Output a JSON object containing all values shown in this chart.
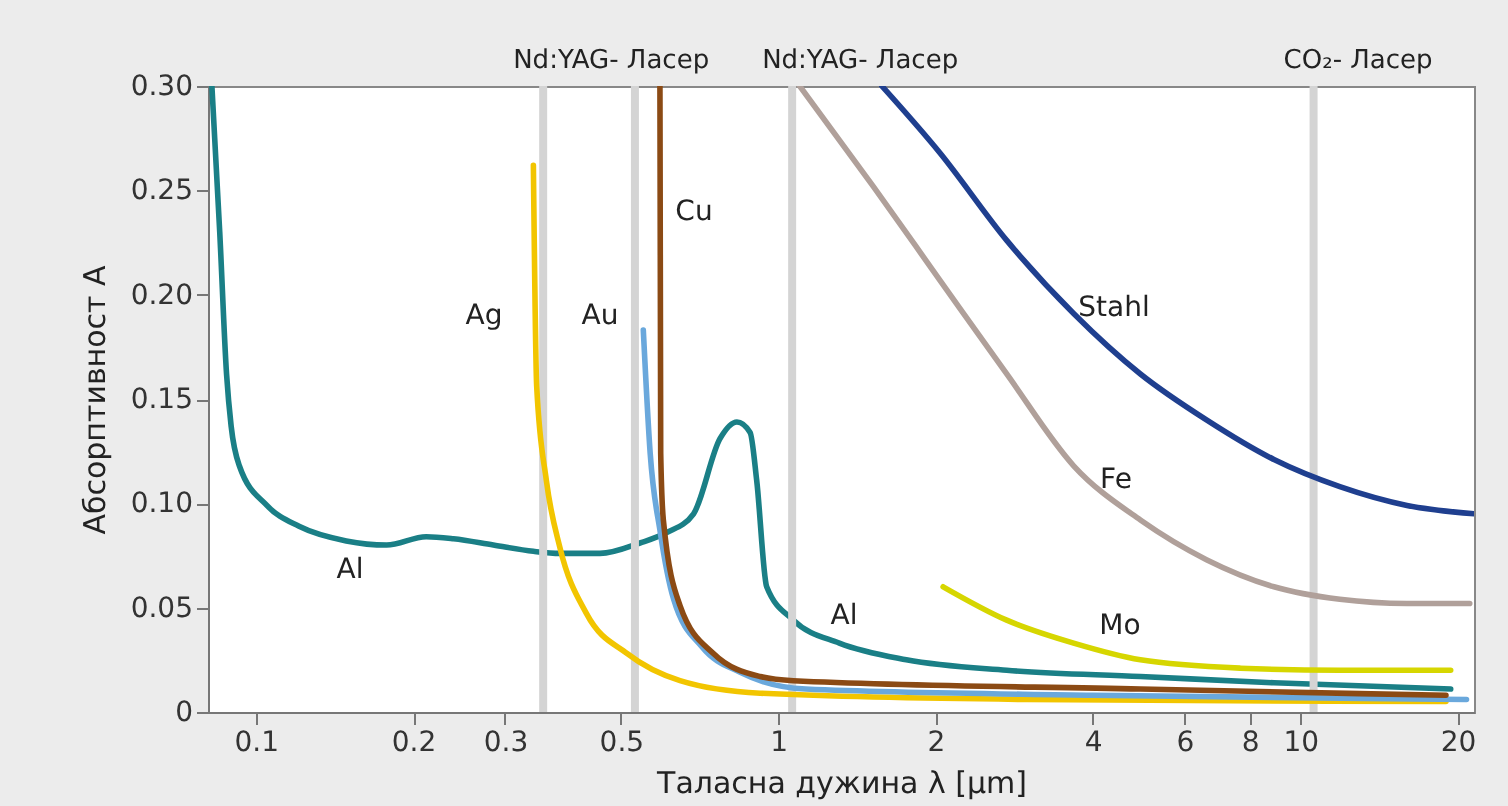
{
  "chart_data": {
    "type": "line",
    "xlabel": "Таласна дужина λ [µm]",
    "ylabel": "Абсорптивност A",
    "log": "x",
    "xlim": [
      0.081,
      21.5
    ],
    "xticks": [
      0.1,
      0.2,
      0.3,
      0.5,
      1,
      2,
      4,
      6,
      8,
      10,
      20
    ],
    "ylim": [
      0,
      0.3
    ],
    "yticks": [
      {
        "value": 0,
        "label": "0"
      },
      {
        "value": 0.05,
        "label": "0.05"
      },
      {
        "value": 0.1,
        "label": "0.10"
      },
      {
        "value": 0.15,
        "label": "0.15"
      },
      {
        "value": 0.2,
        "label": "0.20"
      },
      {
        "value": 0.25,
        "label": "0.25"
      },
      {
        "value": 0.3,
        "label": "0.30"
      }
    ],
    "line_style": "solid",
    "series": [
      {
        "name": "Al",
        "color": "#1a7f86",
        "x": [
          0.0824,
          0.0853,
          0.0879,
          0.0897,
          0.093,
          0.105,
          0.121,
          0.149,
          0.178,
          0.212,
          0.239,
          0.285,
          0.34,
          0.382,
          0.456,
          0.544,
          0.612,
          0.689,
          0.774,
          0.834,
          0.884,
          0.91,
          0.951,
          1.07,
          1.31,
          1.76,
          2.74,
          4.94,
          8.9,
          19.4
        ],
        "values": [
          0.3,
          0.23,
          0.162,
          0.137,
          0.118,
          0.099,
          0.089,
          0.082,
          0.08,
          0.084,
          0.083,
          0.08,
          0.077,
          0.076,
          0.076,
          0.081,
          0.086,
          0.095,
          0.131,
          0.139,
          0.134,
          0.111,
          0.06,
          0.044,
          0.033,
          0.025,
          0.02,
          0.017,
          0.014,
          0.011
        ]
      },
      {
        "name": "Ag",
        "color": "#f2c500",
        "x": [
          0.34,
          0.345,
          0.36,
          0.382,
          0.43,
          0.514,
          0.649,
          0.924,
          3.0,
          19.0
        ],
        "values": [
          0.262,
          0.156,
          0.111,
          0.079,
          0.047,
          0.028,
          0.015,
          0.009,
          0.006,
          0.005
        ]
      },
      {
        "name": "Au",
        "color": "#6aa8dc",
        "x": [
          0.552,
          0.569,
          0.595,
          0.631,
          0.716,
          0.846,
          1.13,
          4.0,
          20.8
        ],
        "values": [
          0.183,
          0.124,
          0.086,
          0.054,
          0.031,
          0.019,
          0.011,
          0.008,
          0.006
        ]
      },
      {
        "name": "Cu",
        "color": "#8b4a14",
        "x": [
          0.594,
          0.596,
          0.603,
          0.649,
          0.752,
          0.924,
          1.07,
          4.94,
          19.0
        ],
        "values": [
          0.3,
          0.124,
          0.092,
          0.051,
          0.028,
          0.017,
          0.015,
          0.011,
          0.008
        ]
      },
      {
        "name": "Stahl",
        "color": "#1f3f8f",
        "x": [
          1.58,
          2.04,
          2.74,
          3.68,
          4.94,
          6.61,
          8.9,
          11.9,
          16.0,
          21.5
        ],
        "values": [
          0.3,
          0.268,
          0.226,
          0.191,
          0.162,
          0.14,
          0.121,
          0.108,
          0.099,
          0.095
        ]
      },
      {
        "name": "Fe",
        "color": "#b0a09a",
        "x": [
          1.1,
          1.52,
          2.04,
          2.74,
          3.68,
          4.94,
          6.61,
          8.9,
          11.9,
          16.0,
          21.1
        ],
        "values": [
          0.3,
          0.252,
          0.207,
          0.162,
          0.118,
          0.092,
          0.073,
          0.06,
          0.054,
          0.052,
          0.052
        ]
      },
      {
        "name": "Mo",
        "color": "#d6d600",
        "x": [
          2.07,
          2.74,
          3.68,
          4.94,
          7.68,
          11.9,
          19.4
        ],
        "values": [
          0.06,
          0.044,
          0.033,
          0.025,
          0.021,
          0.02,
          0.02
        ]
      }
    ],
    "ref_lines": [
      {
        "axis": "x",
        "value": 0.355,
        "label": "Nd:YAG- Ласер",
        "color": "#d4d4d4"
      },
      {
        "axis": "x",
        "value": 0.532,
        "label": null,
        "color": "#d4d4d4"
      },
      {
        "axis": "x",
        "value": 1.064,
        "label": "Nd:YAG- Ласер",
        "color": "#d4d4d4"
      },
      {
        "axis": "x",
        "value": 10.6,
        "label": "CO₂- Ласер",
        "color": "#d4d4d4"
      }
    ],
    "annotations": [
      "Al"
    ]
  }
}
